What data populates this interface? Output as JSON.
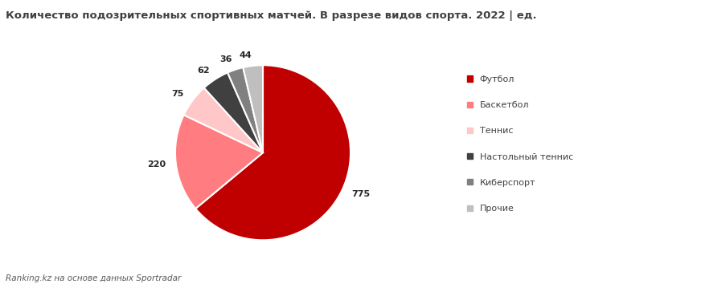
{
  "chart_data": {
    "type": "pie",
    "title": "Количество подозрительных спортивных матчей. В разрезе видов спорта. 2022 | ед.",
    "source": "Ranking.kz на основе данных Sportradar",
    "categories": [
      "Футбол",
      "Баскетбол",
      "Теннис",
      "Настольный теннис",
      "Киберспорт",
      "Прочие"
    ],
    "values": [
      775,
      220,
      75,
      62,
      36,
      44
    ],
    "colors": [
      "#c00000",
      "#ff7c80",
      "#ffc7c7",
      "#404040",
      "#808080",
      "#bfbfbf"
    ],
    "data_labels": true,
    "legend": "right"
  }
}
